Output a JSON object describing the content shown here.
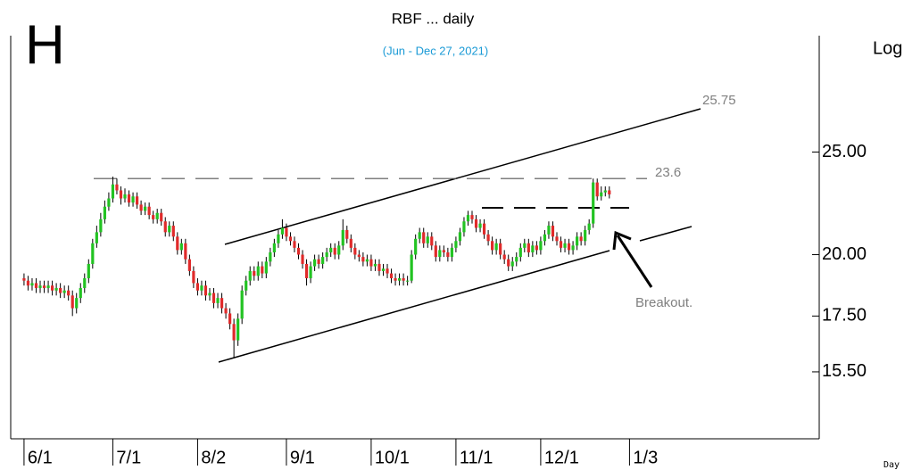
{
  "chart_data": {
    "type": "candlestick",
    "title": "RBF ... daily",
    "subtitle": "(Jun - Dec 27, 2021)",
    "panel_letter": "H",
    "scale_label": "Log",
    "period_label": "Day",
    "log_scale": true,
    "up_color": "#22c322",
    "down_color": "#e02a2a",
    "ylim": [
      13.4,
      32.2
    ],
    "yticks": [
      {
        "value": 25,
        "label": "25.00"
      },
      {
        "value": 20,
        "label": "20.00"
      },
      {
        "value": 17.5,
        "label": "17.50"
      },
      {
        "value": 15.5,
        "label": "15.50"
      }
    ],
    "xlim": [
      -3.3,
      197
    ],
    "categories": [
      "6/1",
      null,
      null,
      null,
      null,
      null,
      null,
      null,
      null,
      null,
      null,
      null,
      null,
      null,
      null,
      null,
      null,
      null,
      null,
      null,
      null,
      null,
      "7/1",
      null,
      null,
      null,
      null,
      null,
      null,
      null,
      null,
      null,
      null,
      null,
      null,
      null,
      null,
      null,
      null,
      null,
      null,
      null,
      null,
      "8/2",
      null,
      null,
      null,
      null,
      null,
      null,
      null,
      null,
      null,
      null,
      null,
      null,
      null,
      null,
      null,
      null,
      null,
      null,
      null,
      null,
      null,
      "9/1",
      null,
      null,
      null,
      null,
      null,
      null,
      null,
      null,
      null,
      null,
      null,
      null,
      null,
      null,
      null,
      null,
      null,
      null,
      null,
      null,
      "10/1",
      null,
      null,
      null,
      null,
      null,
      null,
      null,
      null,
      null,
      null,
      null,
      null,
      null,
      null,
      null,
      null,
      null,
      null,
      null,
      null,
      "11/1",
      null,
      null,
      null,
      null,
      null,
      null,
      null,
      null,
      null,
      null,
      null,
      null,
      null,
      null,
      null,
      null,
      null,
      null,
      null,
      null,
      "12/1",
      null,
      null,
      null,
      null,
      null,
      null,
      null,
      null,
      null,
      null,
      null,
      null,
      null,
      null,
      null,
      null,
      null,
      null,
      null,
      null,
      null,
      "1/3"
    ],
    "open": [
      19.0,
      18.9,
      18.7,
      18.8,
      18.6,
      18.7,
      18.6,
      18.7,
      18.5,
      18.6,
      18.4,
      18.5,
      18.3,
      17.8,
      18.2,
      18.6,
      19.0,
      19.6,
      20.5,
      21.0,
      21.6,
      22.2,
      22.6,
      23.3,
      23.0,
      22.6,
      22.8,
      22.4,
      22.7,
      22.3,
      22.0,
      22.2,
      21.8,
      21.6,
      21.9,
      21.5,
      21.0,
      21.3,
      20.8,
      20.2,
      20.5,
      19.8,
      19.3,
      18.8,
      18.5,
      18.7,
      18.3,
      18.4,
      18.0,
      18.2,
      17.8,
      17.6,
      17.2,
      16.6,
      17.4,
      18.5,
      18.9,
      19.3,
      19.1,
      19.5,
      19.2,
      19.7,
      20.1,
      20.5,
      20.9,
      21.2,
      20.8,
      20.6,
      20.3,
      20.0,
      19.6,
      19.0,
      19.5,
      19.8,
      19.6,
      19.9,
      20.1,
      20.3,
      20.0,
      20.4,
      21.1,
      20.7,
      20.3,
      20.0,
      19.9,
      19.7,
      19.8,
      19.5,
      19.6,
      19.3,
      19.4,
      19.2,
      19.0,
      18.9,
      19.0,
      18.9,
      18.9,
      20.0,
      20.7,
      21.0,
      20.5,
      20.8,
      20.4,
      19.9,
      20.2,
      20.1,
      19.9,
      20.3,
      20.6,
      21.0,
      21.5,
      21.8,
      21.6,
      21.2,
      21.4,
      20.9,
      20.6,
      20.2,
      20.5,
      20.0,
      19.8,
      19.5,
      19.7,
      19.9,
      20.3,
      20.5,
      20.1,
      20.4,
      20.2,
      20.6,
      20.9,
      21.3,
      20.8,
      20.6,
      20.3,
      20.5,
      20.2,
      20.4,
      20.8,
      20.6,
      21.1,
      21.4,
      23.4,
      22.7,
      22.9,
      23.0,
      null,
      null,
      null,
      null,
      null
    ],
    "high": [
      19.2,
      19.1,
      19.0,
      19.0,
      18.9,
      18.9,
      18.9,
      18.9,
      18.8,
      18.8,
      18.7,
      18.7,
      18.5,
      18.4,
      18.8,
      19.2,
      19.8,
      20.7,
      21.3,
      21.9,
      22.5,
      22.9,
      23.7,
      23.6,
      23.2,
      23.1,
      23.0,
      22.9,
      22.9,
      22.5,
      22.4,
      22.4,
      22.0,
      22.1,
      22.1,
      21.7,
      21.5,
      21.5,
      21.0,
      20.7,
      20.7,
      20.0,
      19.5,
      19.0,
      18.9,
      18.9,
      18.6,
      18.6,
      18.4,
      18.4,
      18.0,
      17.8,
      17.4,
      17.6,
      18.7,
      19.1,
      19.5,
      19.5,
      19.7,
      19.7,
      19.9,
      20.3,
      20.7,
      21.1,
      21.6,
      21.4,
      21.0,
      20.8,
      20.5,
      20.2,
      19.8,
      19.7,
      20.0,
      20.0,
      20.1,
      20.3,
      20.5,
      20.5,
      20.6,
      21.6,
      21.3,
      20.9,
      20.5,
      20.2,
      20.1,
      20.0,
      20.0,
      19.8,
      19.8,
      19.6,
      19.6,
      19.4,
      19.2,
      19.2,
      19.2,
      19.1,
      20.2,
      20.9,
      21.2,
      21.2,
      21.0,
      21.0,
      20.6,
      20.4,
      20.4,
      20.3,
      20.5,
      20.8,
      21.2,
      21.7,
      22.0,
      22.0,
      21.8,
      21.6,
      21.6,
      21.1,
      20.8,
      20.7,
      20.7,
      20.2,
      20.0,
      19.9,
      20.1,
      20.5,
      20.7,
      20.7,
      20.6,
      20.6,
      20.8,
      21.1,
      21.5,
      21.5,
      21.0,
      20.8,
      20.7,
      20.7,
      20.6,
      21.0,
      21.0,
      21.3,
      21.6,
      23.6,
      23.6,
      23.2,
      23.2,
      23.2,
      null,
      null,
      null,
      null,
      null
    ],
    "low": [
      18.7,
      18.5,
      18.5,
      18.4,
      18.4,
      18.4,
      18.4,
      18.3,
      18.3,
      18.2,
      18.2,
      18.1,
      17.5,
      17.6,
      18.0,
      18.4,
      18.8,
      19.4,
      20.3,
      20.8,
      21.4,
      22.0,
      22.4,
      22.8,
      22.3,
      22.4,
      22.2,
      22.2,
      22.1,
      21.8,
      21.8,
      21.6,
      21.4,
      21.4,
      21.3,
      20.8,
      20.8,
      20.6,
      20.0,
      20.0,
      19.6,
      19.1,
      18.6,
      18.3,
      18.3,
      18.1,
      18.1,
      17.8,
      17.8,
      17.6,
      17.4,
      17.0,
      16.0,
      16.4,
      17.2,
      18.3,
      18.7,
      18.9,
      18.9,
      19.0,
      19.0,
      19.5,
      19.9,
      20.3,
      20.7,
      20.6,
      20.4,
      20.1,
      19.8,
      19.4,
      18.7,
      18.8,
      19.3,
      19.4,
      19.4,
      19.7,
      19.9,
      19.8,
      19.8,
      20.2,
      20.5,
      20.1,
      19.8,
      19.7,
      19.5,
      19.5,
      19.3,
      19.3,
      19.1,
      19.1,
      19.0,
      18.8,
      18.7,
      18.7,
      18.7,
      18.7,
      18.8,
      19.8,
      20.5,
      20.3,
      20.3,
      20.2,
      19.7,
      19.7,
      19.9,
      19.7,
      19.7,
      20.1,
      20.4,
      20.8,
      21.3,
      21.4,
      21.0,
      21.0,
      20.7,
      20.4,
      20.0,
      20.0,
      19.8,
      19.6,
      19.3,
      19.3,
      19.5,
      19.7,
      20.1,
      19.9,
      19.9,
      20.0,
      20.0,
      20.4,
      20.7,
      20.6,
      20.4,
      20.1,
      20.1,
      20.0,
      20.0,
      20.2,
      20.4,
      20.4,
      20.9,
      21.2,
      22.5,
      22.5,
      22.7,
      22.6,
      null,
      null,
      null,
      null,
      null
    ],
    "close": [
      18.9,
      18.7,
      18.8,
      18.6,
      18.7,
      18.6,
      18.7,
      18.5,
      18.6,
      18.4,
      18.5,
      18.3,
      17.8,
      18.2,
      18.6,
      19.0,
      19.6,
      20.5,
      21.0,
      21.6,
      22.2,
      22.6,
      23.3,
      23.0,
      22.6,
      22.8,
      22.4,
      22.7,
      22.3,
      22.0,
      22.2,
      21.8,
      21.6,
      21.9,
      21.5,
      21.0,
      21.3,
      20.8,
      20.2,
      20.5,
      19.8,
      19.3,
      18.8,
      18.5,
      18.7,
      18.3,
      18.4,
      18.0,
      18.2,
      17.8,
      17.6,
      17.2,
      16.6,
      17.4,
      18.5,
      18.9,
      19.3,
      19.1,
      19.5,
      19.2,
      19.7,
      20.1,
      20.5,
      20.9,
      21.2,
      20.8,
      20.6,
      20.3,
      20.0,
      19.6,
      19.0,
      19.5,
      19.8,
      19.6,
      19.9,
      20.1,
      20.3,
      20.0,
      20.4,
      21.1,
      20.7,
      20.3,
      20.0,
      19.9,
      19.7,
      19.8,
      19.5,
      19.6,
      19.3,
      19.4,
      19.2,
      19.0,
      18.9,
      19.0,
      18.9,
      18.9,
      20.0,
      20.7,
      21.0,
      20.5,
      20.8,
      20.4,
      19.9,
      20.2,
      20.1,
      19.9,
      20.3,
      20.6,
      21.0,
      21.5,
      21.8,
      21.6,
      21.2,
      21.4,
      20.9,
      20.6,
      20.2,
      20.5,
      20.0,
      19.8,
      19.5,
      19.7,
      19.9,
      20.3,
      20.5,
      20.1,
      20.4,
      20.2,
      20.6,
      20.9,
      21.3,
      20.8,
      20.6,
      20.3,
      20.5,
      20.2,
      20.4,
      20.8,
      20.6,
      21.1,
      21.4,
      23.4,
      22.7,
      22.9,
      23.0,
      22.8,
      null,
      null,
      null,
      null,
      null
    ],
    "annotations": {
      "resistance": 23.6,
      "target": 25.75,
      "note": "Breakout."
    }
  }
}
